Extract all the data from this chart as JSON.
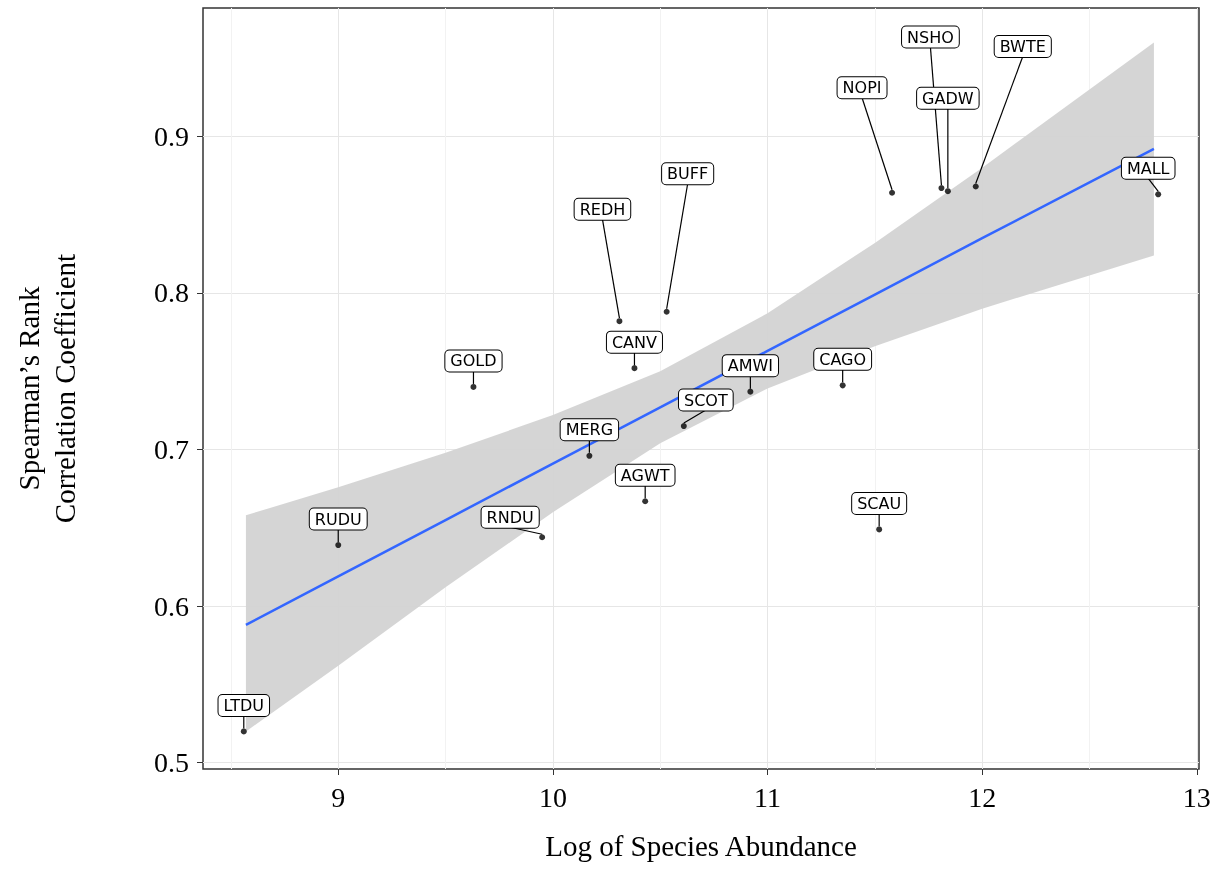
{
  "chart_data": {
    "type": "scatter",
    "xlabel": "Log of Species Abundance",
    "ylabel": "Spearman’s Rank\nCorrelation Coefficient",
    "xlim": [
      8.37,
      13.01
    ],
    "ylim": [
      0.496,
      0.982
    ],
    "xticks": [
      9,
      10,
      11,
      12,
      13
    ],
    "yticks": [
      0.5,
      0.6,
      0.7,
      0.8,
      0.9
    ],
    "grid": true,
    "series": [
      {
        "marker": "circle",
        "color": "#000000",
        "x": [
          8.56,
          9.0,
          9.63,
          9.95,
          10.17,
          10.38,
          10.43,
          10.61,
          10.92,
          11.35,
          11.52,
          12.82,
          10.31,
          10.53,
          11.58,
          11.81,
          11.84,
          11.97
        ],
        "values": [
          0.52,
          0.639,
          0.74,
          0.644,
          0.696,
          0.752,
          0.667,
          0.715,
          0.737,
          0.741,
          0.649,
          0.863,
          0.782,
          0.788,
          0.864,
          0.867,
          0.865,
          0.868
        ]
      },
      {
        "type": "line",
        "color": "#3366ff",
        "x": [
          8.57,
          9,
          9.5,
          10,
          10.5,
          11,
          11.5,
          12,
          12.8
        ],
        "values": [
          0.588,
          0.619,
          0.655,
          0.691,
          0.727,
          0.763,
          0.799,
          0.835,
          0.892
        ],
        "lower": [
          0.52,
          0.562,
          0.612,
          0.66,
          0.704,
          0.739,
          0.766,
          0.79,
          0.824
        ],
        "upper": [
          0.658,
          0.676,
          0.698,
          0.722,
          0.75,
          0.787,
          0.832,
          0.88,
          0.96
        ]
      }
    ],
    "annotations": [
      {
        "text": "LTDU",
        "x": 8.56,
        "y": 0.52
      },
      {
        "text": "RUDU",
        "x": 9.0,
        "y": 0.639
      },
      {
        "text": "GOLD",
        "x": 9.63,
        "y": 0.74
      },
      {
        "text": "RNDU",
        "x": 9.95,
        "y": 0.644
      },
      {
        "text": "MERG",
        "x": 10.17,
        "y": 0.696
      },
      {
        "text": "CANV",
        "x": 10.38,
        "y": 0.752
      },
      {
        "text": "AGWT",
        "x": 10.43,
        "y": 0.667
      },
      {
        "text": "SCOT",
        "x": 10.61,
        "y": 0.715
      },
      {
        "text": "AMWI",
        "x": 10.92,
        "y": 0.737
      },
      {
        "text": "CAGO",
        "x": 11.35,
        "y": 0.741
      },
      {
        "text": "SCAU",
        "x": 11.52,
        "y": 0.649
      },
      {
        "text": "MALL",
        "x": 12.82,
        "y": 0.863
      },
      {
        "text": "REDH",
        "x": 10.31,
        "y": 0.782
      },
      {
        "text": "BUFF",
        "x": 10.53,
        "y": 0.788
      },
      {
        "text": "NOPI",
        "x": 11.58,
        "y": 0.864
      },
      {
        "text": "NSHO",
        "x": 11.81,
        "y": 0.867
      },
      {
        "text": "GADW",
        "x": 11.84,
        "y": 0.865
      },
      {
        "text": "BWTE",
        "x": 11.97,
        "y": 0.868
      }
    ]
  }
}
